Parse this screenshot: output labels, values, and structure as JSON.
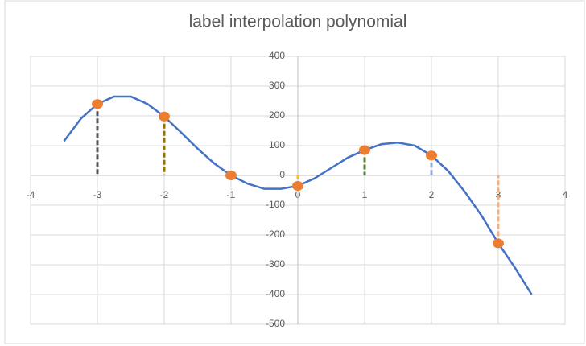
{
  "chart_data": {
    "type": "scatter",
    "title": "label interpolation polynomial",
    "xlim": [
      -4,
      4
    ],
    "ylim": [
      -500,
      400
    ],
    "xticks": [
      -4,
      -3,
      -2,
      -1,
      0,
      1,
      2,
      3,
      4
    ],
    "yticks": [
      -500,
      -400,
      -300,
      -200,
      -100,
      0,
      100,
      200,
      300,
      400
    ],
    "grid": true,
    "series": [
      {
        "color": "#4472c4",
        "line": true,
        "x": [
          -3.5,
          -3.25,
          -3,
          -2.75,
          -2.5,
          -2.25,
          -2,
          -1.75,
          -1.5,
          -1.25,
          -1,
          -0.75,
          -0.5,
          -0.25,
          0,
          0.25,
          0.5,
          0.75,
          1,
          1.25,
          1.5,
          1.75,
          2,
          2.25,
          2.5,
          2.75,
          3,
          3.25,
          3.5
        ],
        "values": [
          115,
          190,
          240,
          265,
          265,
          240,
          198,
          145,
          90,
          40,
          0,
          -28,
          -45,
          -45,
          -35,
          -10,
          25,
          60,
          85,
          105,
          110,
          100,
          67,
          15,
          -55,
          -135,
          -228,
          -310,
          -400
        ]
      },
      {
        "color": "#ed7d31",
        "line": false,
        "x": [
          -3,
          -2,
          -1,
          0,
          1,
          2,
          3
        ],
        "values": [
          240,
          198,
          0,
          -35,
          85,
          67,
          -228
        ],
        "drop_colors": [
          "#595959",
          "#997300",
          "#a5a5a5",
          "#ffc000",
          "#548235",
          "#8faadc",
          "#f4b183"
        ]
      }
    ]
  }
}
